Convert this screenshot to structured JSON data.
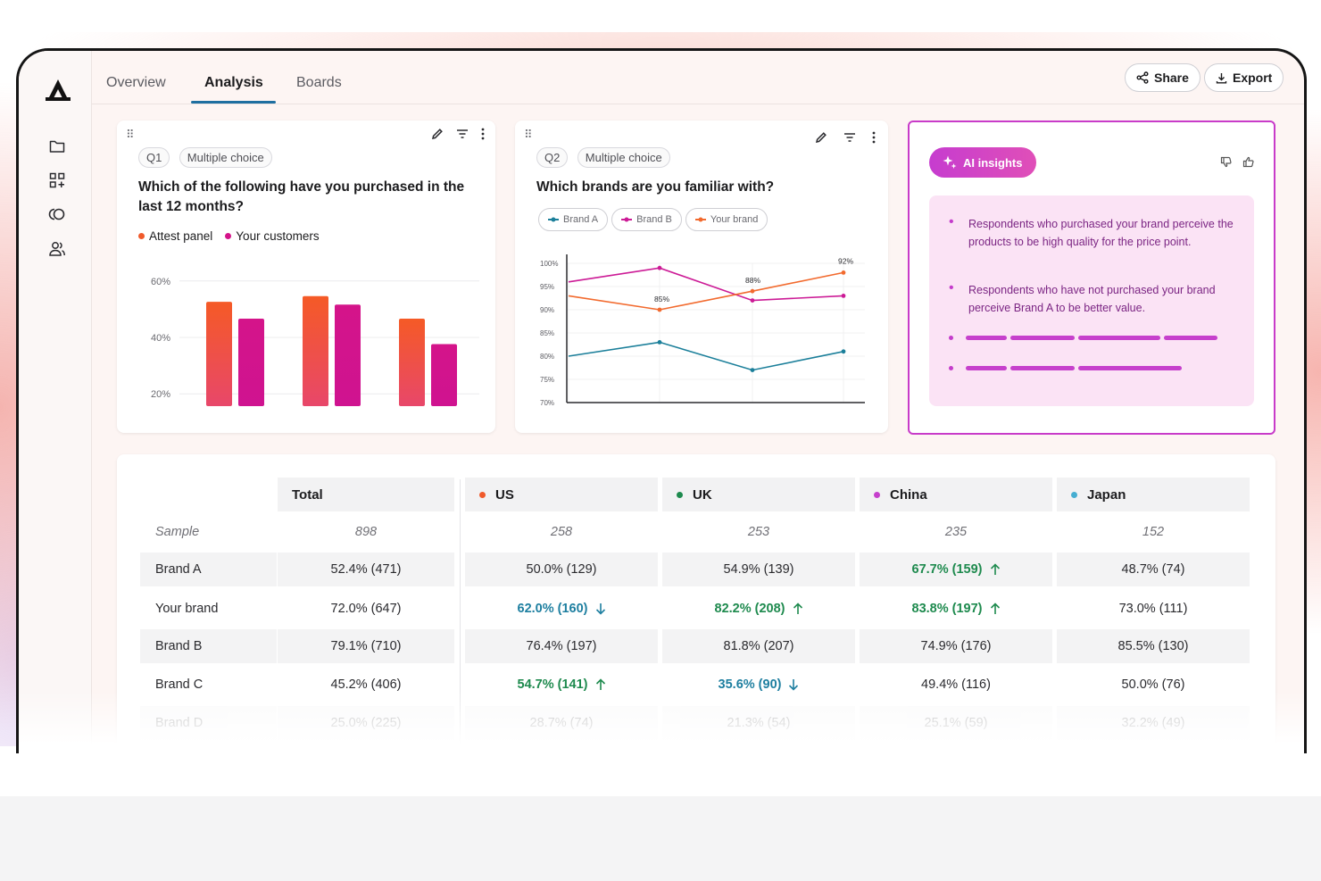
{
  "nav": {
    "tabs": [
      "Overview",
      "Analysis",
      "Boards"
    ],
    "active_tab": "Analysis",
    "share_label": "Share",
    "export_label": "Export"
  },
  "sidebar": {
    "icons": [
      "folder-icon",
      "grid-plus-icon",
      "circles-icon",
      "users-icon"
    ]
  },
  "card1": {
    "question_no": "Q1",
    "question_type": "Multiple choice",
    "title": "Which of the following have you purchased in the last 12 months?",
    "legend": [
      "Attest panel",
      "Your customers"
    ],
    "legend_colors": [
      "#f05a2b",
      "#d4148a"
    ]
  },
  "card2": {
    "question_no": "Q2",
    "question_type": "Multiple choice",
    "title": "Which brands are you familiar with?",
    "legend": [
      "Brand A",
      "Brand B",
      "Your brand"
    ],
    "legend_colors": [
      "#1b7f9a",
      "#cc1b96",
      "#f26a2e"
    ]
  },
  "ai": {
    "button_label": "AI insights",
    "bullets": [
      "Respondents who purchased your brand perceive the products to be high quality for the price point.",
      "Respondents who have not purchased your brand perceive Brand A to be better value."
    ]
  },
  "chart_data": [
    {
      "type": "bar",
      "title": "",
      "series": [
        {
          "name": "Attest panel",
          "values": [
            52,
            54,
            46
          ]
        },
        {
          "name": "Your customers",
          "values": [
            46,
            51,
            37
          ]
        }
      ],
      "categories": [
        "",
        "",
        ""
      ],
      "ylim": [
        15,
        65
      ],
      "yticks": [
        "20%",
        "40%",
        "60%"
      ],
      "grid": true
    },
    {
      "type": "line",
      "x": [
        1,
        2,
        3,
        4
      ],
      "series": [
        {
          "name": "Brand A",
          "values": [
            80,
            83,
            77,
            81
          ]
        },
        {
          "name": "Brand B",
          "values": [
            96,
            99,
            92,
            93
          ]
        },
        {
          "name": "Your brand",
          "values": [
            93,
            90,
            94,
            98
          ]
        }
      ],
      "ylim": [
        70,
        100
      ],
      "yticks": [
        "70%",
        "75%",
        "80%",
        "85%",
        "90%",
        "95%",
        "100%"
      ],
      "annotations": [
        "85%",
        "88%",
        "92%"
      ],
      "grid": true
    }
  ],
  "table": {
    "columns": [
      {
        "label": "Total",
        "dot": null
      },
      {
        "label": "US",
        "dot": "#f05a2b"
      },
      {
        "label": "UK",
        "dot": "#1e8a4e"
      },
      {
        "label": "China",
        "dot": "#c640cc"
      },
      {
        "label": "Japan",
        "dot": "#46aed1"
      }
    ],
    "sample_label": "Sample",
    "sample": [
      "898",
      "258",
      "253",
      "235",
      "152"
    ],
    "rows": [
      {
        "label": "Brand A",
        "cells": [
          {
            "v": "52.4% (471)",
            "t": ""
          },
          {
            "v": "50.0% (129)",
            "t": ""
          },
          {
            "v": "54.9% (139)",
            "t": ""
          },
          {
            "v": "67.7% (159)",
            "t": "up"
          },
          {
            "v": "48.7% (74)",
            "t": ""
          }
        ]
      },
      {
        "label": "Your brand",
        "cells": [
          {
            "v": "72.0% (647)",
            "t": ""
          },
          {
            "v": "62.0% (160)",
            "t": "down"
          },
          {
            "v": "82.2% (208)",
            "t": "up"
          },
          {
            "v": "83.8% (197)",
            "t": "up"
          },
          {
            "v": "73.0% (111)",
            "t": ""
          }
        ]
      },
      {
        "label": "Brand B",
        "cells": [
          {
            "v": "79.1% (710)",
            "t": ""
          },
          {
            "v": "76.4% (197)",
            "t": ""
          },
          {
            "v": "81.8% (207)",
            "t": ""
          },
          {
            "v": "74.9% (176)",
            "t": ""
          },
          {
            "v": "85.5% (130)",
            "t": ""
          }
        ]
      },
      {
        "label": "Brand C",
        "cells": [
          {
            "v": "45.2% (406)",
            "t": ""
          },
          {
            "v": "54.7% (141)",
            "t": "up"
          },
          {
            "v": "35.6% (90)",
            "t": "down"
          },
          {
            "v": "49.4% (116)",
            "t": ""
          },
          {
            "v": "50.0% (76)",
            "t": ""
          }
        ]
      },
      {
        "label": "Brand D",
        "cells": [
          {
            "v": "25.0% (225)",
            "t": ""
          },
          {
            "v": "28.7% (74)",
            "t": ""
          },
          {
            "v": "21.3% (54)",
            "t": ""
          },
          {
            "v": "25.1% (59)",
            "t": ""
          },
          {
            "v": "32.2% (49)",
            "t": ""
          }
        ]
      }
    ]
  }
}
